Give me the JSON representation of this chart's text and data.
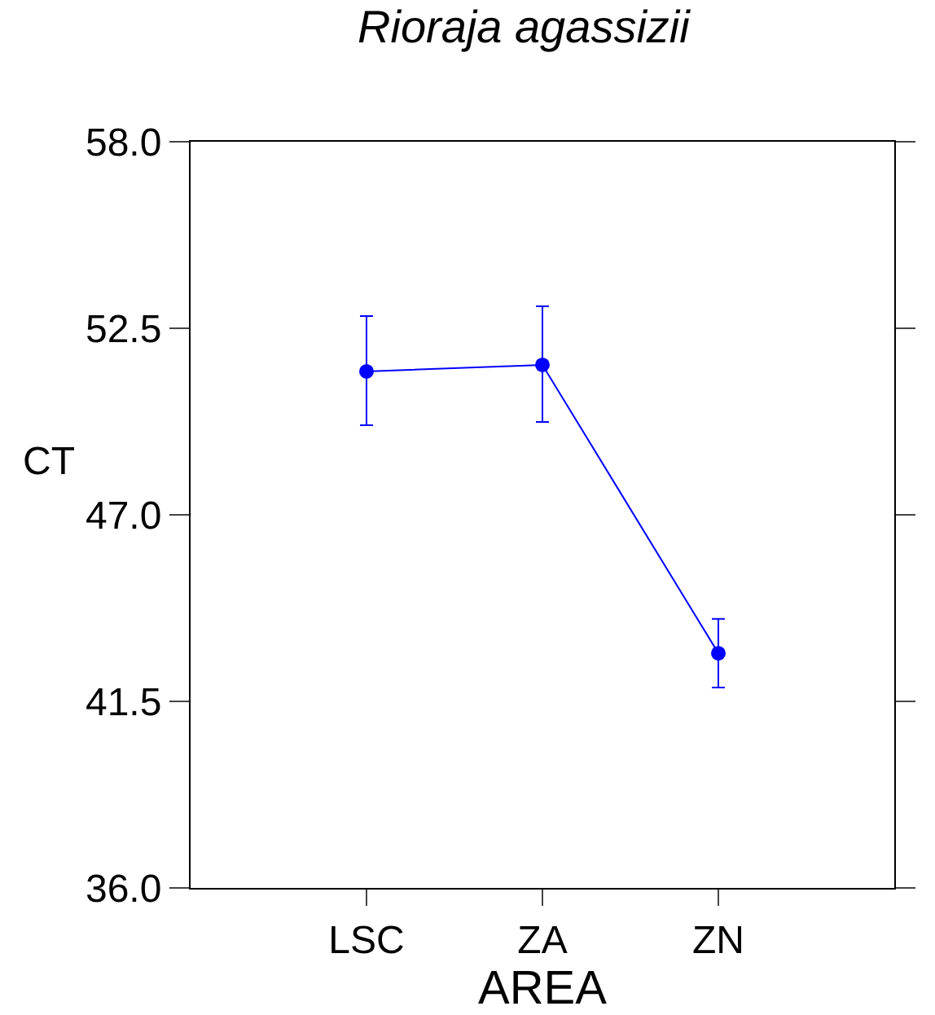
{
  "chart_data": {
    "type": "line",
    "title": "Rioraja agassizii",
    "xlabel": "AREA",
    "ylabel": "CT",
    "categories": [
      "LSC",
      "ZA",
      "ZN"
    ],
    "series": [
      {
        "color": "#0000ff",
        "values": [
          51.23,
          51.42,
          42.92
        ],
        "errors": [
          [
            49.64,
            52.86
          ],
          [
            49.74,
            53.15
          ],
          [
            41.91,
            43.93
          ]
        ]
      }
    ],
    "ylim": [
      36.0,
      58.0
    ],
    "yticks": [
      {
        "value": 36.0,
        "label": "36.0"
      },
      {
        "value": 41.5,
        "label": "41.5"
      },
      {
        "value": 47.0,
        "label": "47.0"
      },
      {
        "value": 52.5,
        "label": "52.5"
      },
      {
        "value": 58.0,
        "label": "58.0"
      }
    ],
    "marker": "circle",
    "line_style": "solid",
    "legend": false
  }
}
